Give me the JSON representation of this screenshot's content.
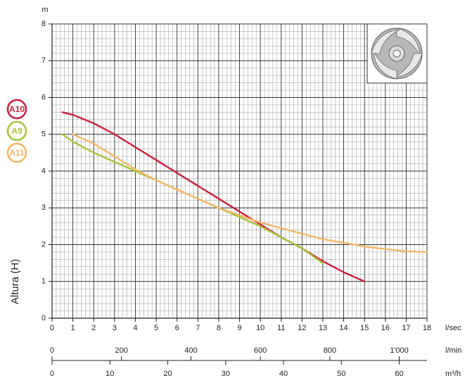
{
  "chart_data": {
    "type": "line",
    "y_unit": "m",
    "y_label": "Altura (H)",
    "x_unit": "l/sec",
    "xlim": [
      0,
      18
    ],
    "xticks": [
      0,
      1,
      2,
      3,
      4,
      5,
      6,
      7,
      8,
      9,
      10,
      11,
      12,
      13,
      14,
      15,
      16,
      17,
      18
    ],
    "ylim": [
      0,
      8
    ],
    "yticks": [
      0,
      1,
      2,
      3,
      4,
      5,
      6,
      7,
      8
    ],
    "grid": true,
    "minor_grid": true,
    "legend": "left",
    "x_axes": [
      {
        "unit": "l/min",
        "xlim": [
          0,
          1080
        ],
        "xticks": [
          0,
          200,
          400,
          600,
          800,
          {
            "value": 1000,
            "label": "1'000"
          }
        ]
      },
      {
        "unit": "m³/h",
        "xlim": [
          0,
          64.8
        ],
        "xticks": [
          0,
          10,
          20,
          30,
          40,
          50,
          60
        ]
      }
    ],
    "series": [
      {
        "name": "A10",
        "color": "#c8213f",
        "x": [
          0.5,
          1,
          2,
          3,
          4,
          5,
          6,
          7,
          8,
          9,
          10,
          11,
          12,
          13,
          14,
          15
        ],
        "values": [
          5.6,
          5.53,
          5.3,
          5.0,
          4.65,
          4.3,
          3.95,
          3.6,
          3.25,
          2.9,
          2.55,
          2.2,
          1.9,
          1.55,
          1.25,
          1.0
        ]
      },
      {
        "name": "A9",
        "color": "#a9c23c",
        "x": [
          0.5,
          1,
          2,
          3,
          4,
          5,
          6,
          7,
          8,
          9,
          10,
          11,
          12,
          13
        ],
        "values": [
          5.0,
          4.8,
          4.5,
          4.25,
          4.0,
          3.75,
          3.5,
          3.25,
          3.0,
          2.75,
          2.5,
          2.2,
          1.9,
          1.5
        ]
      },
      {
        "name": "A11",
        "color": "#f5b76a",
        "x": [
          1,
          2,
          3,
          4,
          5,
          6,
          7,
          8,
          9,
          10,
          11,
          12,
          13,
          14,
          15,
          16,
          17,
          18
        ],
        "values": [
          5.0,
          4.75,
          4.4,
          4.05,
          3.75,
          3.5,
          3.25,
          3.0,
          2.8,
          2.6,
          2.45,
          2.3,
          2.15,
          2.05,
          1.95,
          1.88,
          1.82,
          1.8
        ]
      }
    ]
  }
}
